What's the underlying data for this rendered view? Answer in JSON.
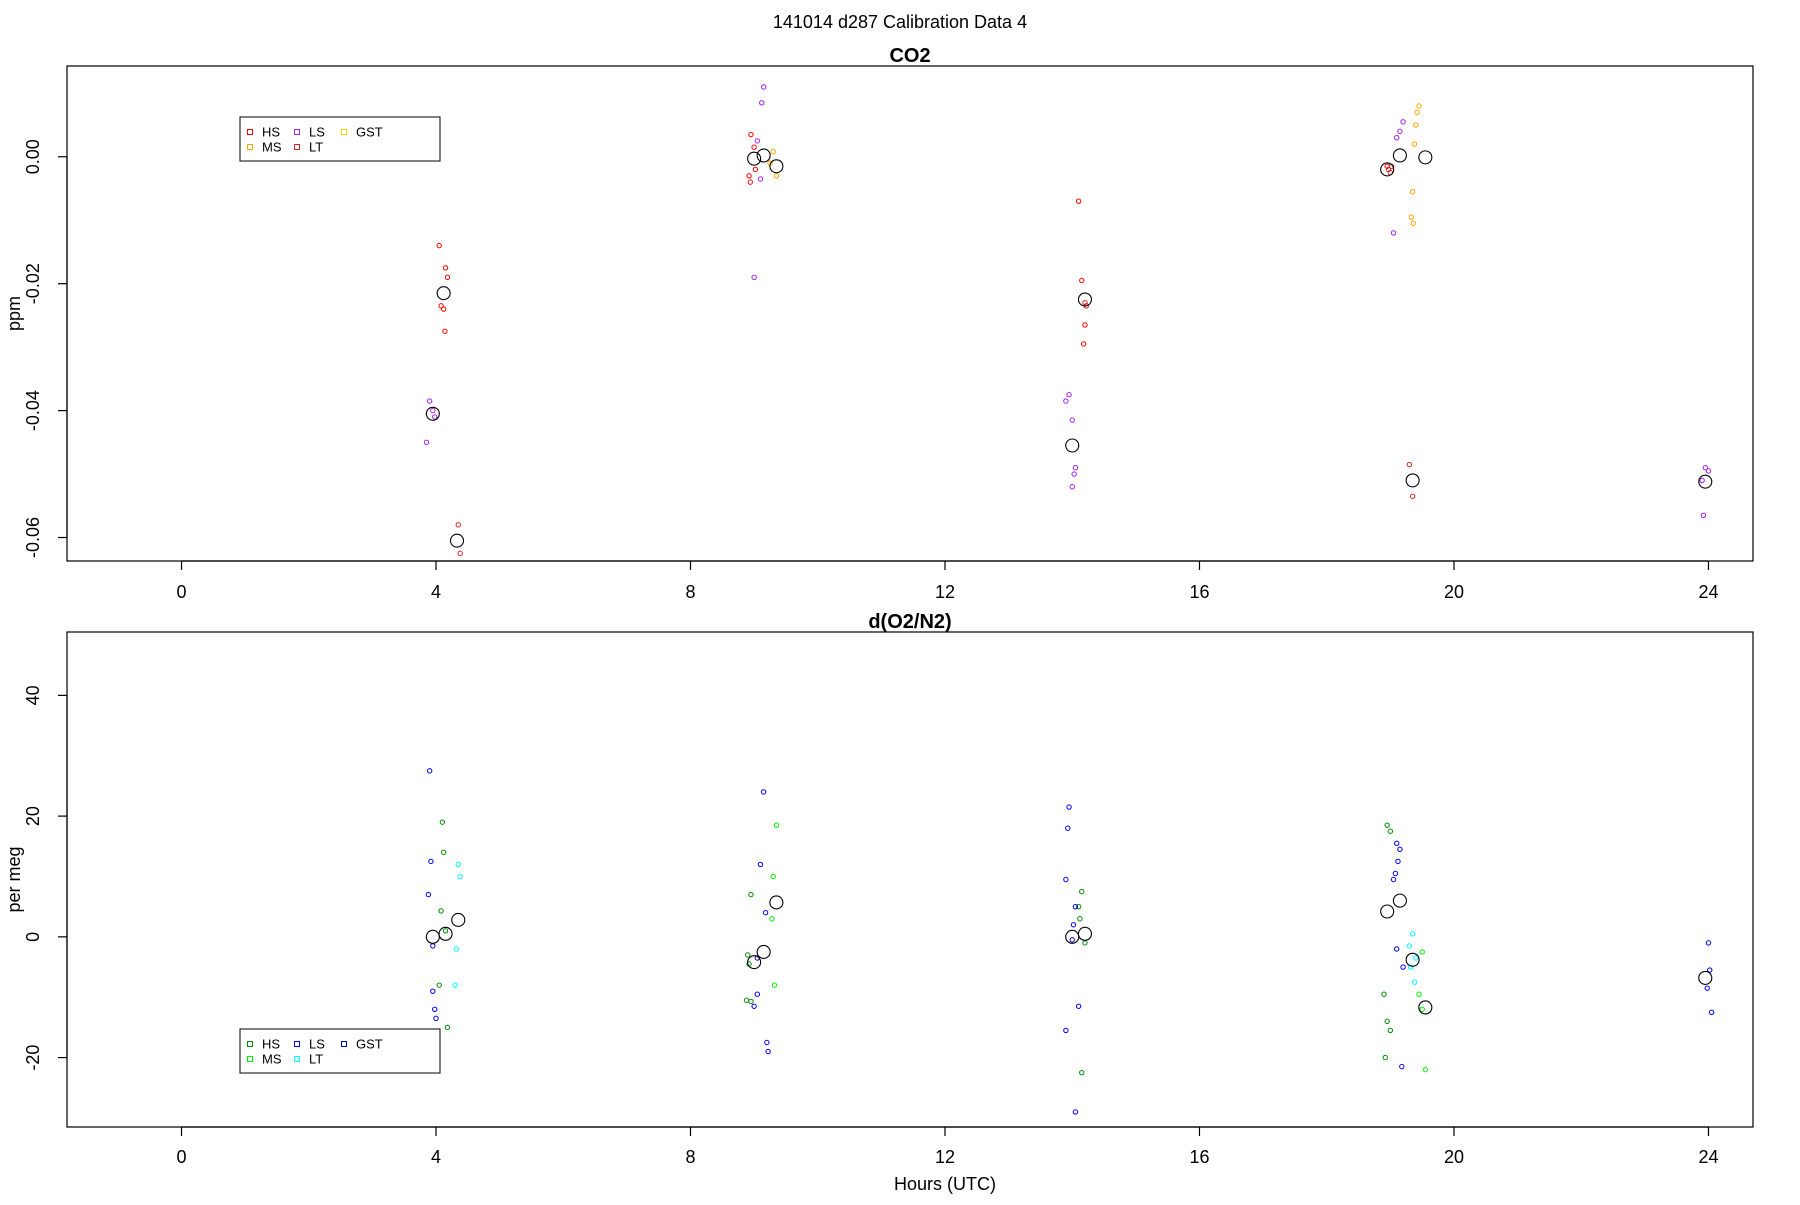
{
  "figure_title": "141014   d287   Calibration Data 4",
  "chart_data": [
    {
      "type": "scatter",
      "title": "CO2",
      "xlabel": "",
      "ylabel": "ppm",
      "xlim": [
        -1.8,
        24.7
      ],
      "ylim": [
        -0.0637,
        0.0143
      ],
      "xticks": [
        0,
        4,
        8,
        12,
        16,
        20,
        24
      ],
      "yticks": [
        -0.06,
        -0.04,
        -0.02,
        0.0
      ],
      "ytick_labels": [
        "-0.06",
        "-0.04",
        "-0.02",
        "0.00"
      ],
      "grid": false,
      "legend_position": "top-left",
      "legend": [
        {
          "label": "HS",
          "color": "#ff0000"
        },
        {
          "label": "MS",
          "color": "#ffa500"
        },
        {
          "label": "LS",
          "color": "#a020f0"
        },
        {
          "label": "LT",
          "color": "#cd2626"
        },
        {
          "label": "GST",
          "color": "#ffd700"
        }
      ],
      "series": [
        {
          "color": "#ff0000",
          "points": [
            [
              4.05,
              -0.014
            ],
            [
              4.15,
              -0.0175
            ],
            [
              4.18,
              -0.019
            ],
            [
              4.08,
              -0.0235
            ],
            [
              4.12,
              -0.024
            ],
            [
              4.14,
              -0.0275
            ],
            [
              8.95,
              0.0035
            ],
            [
              9.0,
              0.0015
            ],
            [
              8.92,
              -0.003
            ],
            [
              8.94,
              -0.004
            ],
            [
              9.02,
              -0.002
            ],
            [
              14.1,
              -0.007
            ],
            [
              14.15,
              -0.0195
            ],
            [
              14.22,
              -0.0235
            ],
            [
              14.2,
              -0.0265
            ],
            [
              14.18,
              -0.0295
            ],
            [
              18.95,
              -0.0015
            ],
            [
              19.0,
              -0.0025
            ]
          ]
        },
        {
          "color": "#ffa500",
          "points": [
            [
              9.25,
              -0.001
            ],
            [
              9.3,
              0.0008
            ],
            [
              9.35,
              -0.003
            ],
            [
              19.45,
              0.008
            ],
            [
              19.42,
              0.007
            ],
            [
              19.4,
              0.005
            ],
            [
              19.38,
              0.002
            ],
            [
              19.35,
              -0.0055
            ],
            [
              19.33,
              -0.0095
            ],
            [
              19.36,
              -0.0105
            ]
          ]
        },
        {
          "color": "#a020f0",
          "points": [
            [
              3.9,
              -0.0385
            ],
            [
              3.95,
              -0.04
            ],
            [
              3.98,
              -0.041
            ],
            [
              3.85,
              -0.045
            ],
            [
              9.15,
              0.011
            ],
            [
              9.12,
              0.0085
            ],
            [
              9.05,
              0.0025
            ],
            [
              9.1,
              -0.0035
            ],
            [
              9.0,
              -0.019
            ],
            [
              13.95,
              -0.0375
            ],
            [
              13.9,
              -0.0385
            ],
            [
              14.0,
              -0.0415
            ],
            [
              14.05,
              -0.049
            ],
            [
              14.03,
              -0.05
            ],
            [
              14.0,
              -0.052
            ],
            [
              19.2,
              0.0055
            ],
            [
              19.15,
              0.004
            ],
            [
              19.1,
              0.003
            ],
            [
              19.05,
              -0.012
            ],
            [
              23.95,
              -0.049
            ],
            [
              24.0,
              -0.0495
            ],
            [
              23.9,
              -0.051
            ],
            [
              23.92,
              -0.0565
            ]
          ]
        },
        {
          "color": "#cd2626",
          "points": [
            [
              4.35,
              -0.058
            ],
            [
              4.38,
              -0.0625
            ],
            [
              14.2,
              -0.023
            ],
            [
              19.3,
              -0.0485
            ],
            [
              19.35,
              -0.0535
            ],
            [
              18.97,
              -0.002
            ],
            [
              19.02,
              -0.0015
            ]
          ]
        },
        {
          "color": "#000000",
          "marker": "large-open-circle",
          "points": [
            [
              3.95,
              -0.0405
            ],
            [
              4.12,
              -0.0215
            ],
            [
              4.33,
              -0.0605
            ],
            [
              9.0,
              -0.0003
            ],
            [
              9.15,
              0.0002
            ],
            [
              9.35,
              -0.0015
            ],
            [
              14.0,
              -0.0455
            ],
            [
              14.2,
              -0.0225
            ],
            [
              18.95,
              -0.002
            ],
            [
              19.15,
              0.0002
            ],
            [
              19.35,
              -0.051
            ],
            [
              19.55,
              -0.0001
            ],
            [
              23.95,
              -0.0512
            ]
          ]
        }
      ]
    },
    {
      "type": "scatter",
      "title": "d(O2/N2)",
      "xlabel": "Hours (UTC)",
      "ylabel": "per meg",
      "xlim": [
        -1.8,
        24.7
      ],
      "ylim": [
        -31.5,
        50.5
      ],
      "xticks": [
        0,
        4,
        8,
        12,
        16,
        20,
        24
      ],
      "yticks": [
        -20,
        0,
        20,
        40
      ],
      "ytick_labels": [
        "-20",
        "0",
        "20",
        "40"
      ],
      "grid": false,
      "legend_position": "bottom-left",
      "legend": [
        {
          "label": "HS",
          "color": "#008b00"
        },
        {
          "label": "MS",
          "color": "#00ee00"
        },
        {
          "label": "LS",
          "color": "#0000ff"
        },
        {
          "label": "LT",
          "color": "#00ffff"
        },
        {
          "label": "GST",
          "color": "#0000cd"
        }
      ],
      "series": [
        {
          "color": "#008b00",
          "points": [
            [
              4.1,
              19.0
            ],
            [
              4.12,
              14.0
            ],
            [
              4.08,
              4.3
            ],
            [
              4.15,
              1.0
            ],
            [
              4.05,
              -8.0
            ],
            [
              4.18,
              -15.0
            ],
            [
              8.95,
              7.0
            ],
            [
              8.9,
              -3.0
            ],
            [
              8.92,
              -4.5
            ],
            [
              8.88,
              -10.5
            ],
            [
              8.95,
              -10.7
            ],
            [
              14.15,
              7.5
            ],
            [
              14.1,
              5.0
            ],
            [
              14.12,
              3.0
            ],
            [
              14.2,
              -1.0
            ],
            [
              14.15,
              -22.5
            ],
            [
              18.95,
              18.5
            ],
            [
              19.0,
              17.5
            ],
            [
              18.9,
              -9.5
            ],
            [
              18.95,
              -14.0
            ],
            [
              19.0,
              -15.5
            ],
            [
              18.92,
              -20.0
            ]
          ]
        },
        {
          "color": "#00ee00",
          "points": [
            [
              9.35,
              18.5
            ],
            [
              9.3,
              10.0
            ],
            [
              9.28,
              3.0
            ],
            [
              9.32,
              -8.0
            ],
            [
              19.5,
              -2.5
            ],
            [
              19.45,
              -9.5
            ],
            [
              19.5,
              -12.0
            ],
            [
              19.55,
              -22.0
            ]
          ]
        },
        {
          "color": "#0000ff",
          "points": [
            [
              3.9,
              27.5
            ],
            [
              3.92,
              12.5
            ],
            [
              3.88,
              7.0
            ],
            [
              3.95,
              -9.0
            ],
            [
              3.98,
              -12.0
            ],
            [
              4.0,
              -13.5
            ],
            [
              9.15,
              24.0
            ],
            [
              9.1,
              12.0
            ],
            [
              9.18,
              4.0
            ],
            [
              9.05,
              -9.5
            ],
            [
              9.0,
              -11.5
            ],
            [
              9.2,
              -17.5
            ],
            [
              9.22,
              -19.0
            ],
            [
              13.95,
              21.5
            ],
            [
              13.93,
              18.0
            ],
            [
              13.9,
              9.5
            ],
            [
              14.05,
              5.0
            ],
            [
              14.02,
              2.0
            ],
            [
              14.1,
              -11.5
            ],
            [
              13.9,
              -15.5
            ],
            [
              14.05,
              -29.0
            ],
            [
              19.1,
              15.5
            ],
            [
              19.15,
              14.5
            ],
            [
              19.12,
              12.5
            ],
            [
              19.08,
              10.5
            ],
            [
              19.05,
              9.5
            ],
            [
              19.2,
              -5.0
            ],
            [
              19.18,
              -21.5
            ],
            [
              24.0,
              -1.0
            ],
            [
              24.02,
              -5.5
            ],
            [
              23.98,
              -8.5
            ],
            [
              24.05,
              -12.5
            ]
          ]
        },
        {
          "color": "#00ffff",
          "points": [
            [
              4.35,
              12.0
            ],
            [
              4.38,
              10.0
            ],
            [
              4.32,
              -2.0
            ],
            [
              4.3,
              -8.0
            ],
            [
              19.35,
              0.5
            ],
            [
              19.3,
              -1.5
            ],
            [
              19.4,
              -3.5
            ],
            [
              19.32,
              -5.0
            ],
            [
              19.38,
              -7.5
            ]
          ]
        },
        {
          "color": "#0000cd",
          "points": [
            [
              3.95,
              -1.5
            ],
            [
              9.05,
              -3.5
            ],
            [
              14.0,
              -0.5
            ],
            [
              19.1,
              -2.0
            ]
          ]
        },
        {
          "color": "#000000",
          "marker": "large-open-circle",
          "points": [
            [
              3.95,
              0.0
            ],
            [
              4.15,
              0.5
            ],
            [
              4.35,
              2.8
            ],
            [
              9.0,
              -4.2
            ],
            [
              9.15,
              -2.5
            ],
            [
              9.35,
              5.7
            ],
            [
              14.0,
              0.0
            ],
            [
              14.2,
              0.5
            ],
            [
              18.95,
              4.2
            ],
            [
              19.15,
              6.0
            ],
            [
              19.35,
              -3.8
            ],
            [
              19.55,
              -11.7
            ],
            [
              23.95,
              -6.8
            ]
          ]
        }
      ]
    }
  ]
}
